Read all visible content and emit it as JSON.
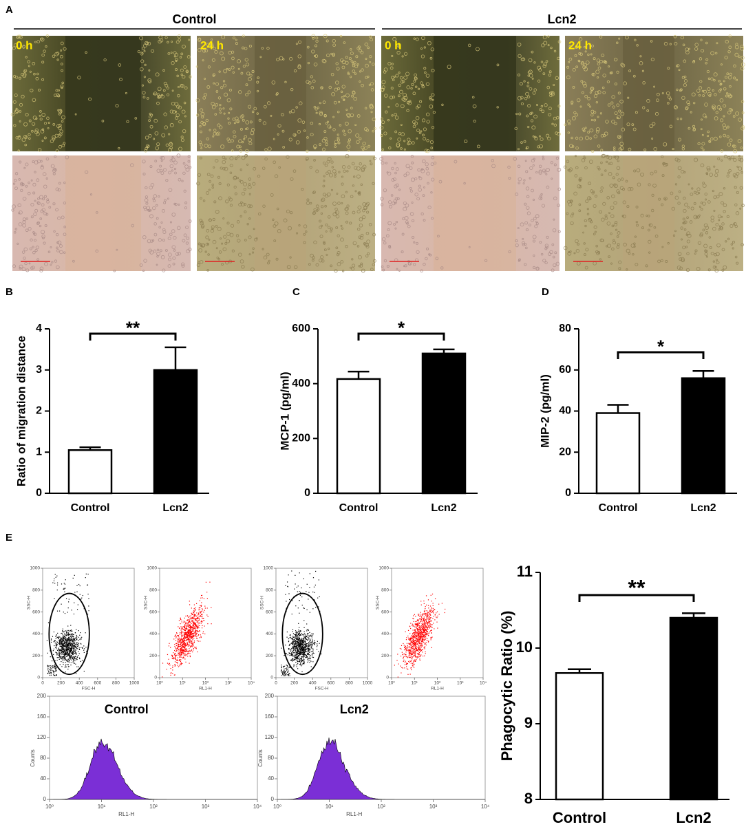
{
  "panel_labels": [
    "A",
    "B",
    "C",
    "D",
    "E"
  ],
  "micrographs": {
    "group_labels": [
      "Control",
      "Lcn2"
    ],
    "time_labels": [
      "0 h",
      "24 h",
      "0 h",
      "24 h"
    ]
  },
  "chart_data": [
    {
      "type": "bar",
      "ylabel": "Ratio of migration distance",
      "categories": [
        "Control",
        "Lcn2"
      ],
      "values": [
        1.05,
        3.0
      ],
      "errors": [
        0.07,
        0.55
      ],
      "colors": [
        "#ffffff",
        "#000000"
      ],
      "ylim": [
        0,
        4
      ],
      "yticks": [
        0,
        1,
        2,
        3,
        4
      ],
      "significance": "**"
    },
    {
      "type": "bar",
      "ylabel": "MCP-1 (pg/ml)",
      "categories": [
        "Control",
        "Lcn2"
      ],
      "values": [
        417,
        510
      ],
      "errors": [
        27,
        15
      ],
      "colors": [
        "#ffffff",
        "#000000"
      ],
      "ylim": [
        0,
        600
      ],
      "yticks": [
        0,
        200,
        400,
        600
      ],
      "significance": "*"
    },
    {
      "type": "bar",
      "ylabel": "MIP-2 (pg/ml)",
      "categories": [
        "Control",
        "Lcn2"
      ],
      "values": [
        39,
        56
      ],
      "errors": [
        4,
        3.5
      ],
      "colors": [
        "#ffffff",
        "#000000"
      ],
      "ylim": [
        0,
        80
      ],
      "yticks": [
        0,
        20,
        40,
        60,
        80
      ],
      "significance": "*"
    },
    {
      "type": "bar",
      "ylabel": "Phagocytic Ratio (%)",
      "categories": [
        "Control",
        "Lcn2"
      ],
      "values": [
        9.67,
        10.4
      ],
      "errors": [
        0.05,
        0.06
      ],
      "colors": [
        "#ffffff",
        "#000000"
      ],
      "ylim": [
        8,
        11
      ],
      "yticks": [
        8,
        9,
        10,
        11
      ],
      "significance": "**"
    }
  ],
  "flow_cytometry": {
    "scatter_plots": [
      {
        "xlabel": "FSC-H",
        "ylabel": "SSC-H",
        "log_x": false,
        "color": "#000000",
        "gate": true,
        "xlim": [
          0,
          1000
        ],
        "ylim": [
          0,
          1000
        ],
        "xticks": [
          0,
          200,
          400,
          600,
          800,
          1000
        ],
        "yticks": [
          0,
          200,
          400,
          600,
          800,
          1000
        ]
      },
      {
        "xlabel": "RL1-H",
        "ylabel": "SSC-H",
        "log_x": true,
        "color": "#ff0000",
        "gate": false,
        "xlim": [
          1,
          10000
        ],
        "ylim": [
          0,
          1000
        ],
        "xticks": [
          {
            "value": 1,
            "label": "10⁰"
          },
          {
            "value": 10,
            "label": "10¹"
          },
          {
            "value": 100,
            "label": "10²"
          },
          {
            "value": 1000,
            "label": "10³"
          },
          {
            "value": 10000,
            "label": "10⁴"
          }
        ],
        "yticks": [
          0,
          200,
          400,
          600,
          800,
          1000
        ]
      },
      {
        "xlabel": "FSC-H",
        "ylabel": "SSC-H",
        "log_x": false,
        "color": "#000000",
        "gate": true,
        "xlim": [
          0,
          1000
        ],
        "ylim": [
          0,
          1000
        ],
        "xticks": [
          0,
          200,
          400,
          600,
          800,
          1000
        ],
        "yticks": [
          0,
          200,
          400,
          600,
          800,
          1000
        ]
      },
      {
        "xlabel": "RL1-H",
        "ylabel": "SSC-H",
        "log_x": true,
        "color": "#ff0000",
        "gate": false,
        "xlim": [
          1,
          10000
        ],
        "ylim": [
          0,
          1000
        ],
        "xticks": [
          {
            "value": 1,
            "label": "10⁰"
          },
          {
            "value": 10,
            "label": "10¹"
          },
          {
            "value": 100,
            "label": "10²"
          },
          {
            "value": 1000,
            "label": "10³"
          },
          {
            "value": 10000,
            "label": "10⁴"
          }
        ],
        "yticks": [
          0,
          200,
          400,
          600,
          800,
          1000
        ]
      }
    ],
    "histograms": [
      {
        "title": "Control",
        "xlabel": "RL1-H",
        "ylabel": "Counts",
        "color": "#7b2fd6",
        "xlim": [
          1,
          10000
        ],
        "ylim": [
          0,
          200
        ],
        "xticks": [
          {
            "value": 1,
            "label": "10⁰"
          },
          {
            "value": 10,
            "label": "10¹"
          },
          {
            "value": 100,
            "label": "10²"
          },
          {
            "value": 1000,
            "label": "10³"
          },
          {
            "value": 10000,
            "label": "10⁴"
          }
        ],
        "yticks": [
          0,
          40,
          80,
          120,
          160,
          200
        ]
      },
      {
        "title": "Lcn2",
        "xlabel": "RL1-H",
        "ylabel": "Counts",
        "color": "#7b2fd6",
        "xlim": [
          1,
          10000
        ],
        "ylim": [
          0,
          200
        ],
        "xticks": [
          {
            "value": 1,
            "label": "10⁰"
          },
          {
            "value": 10,
            "label": "10¹"
          },
          {
            "value": 100,
            "label": "10²"
          },
          {
            "value": 1000,
            "label": "10³"
          },
          {
            "value": 10000,
            "label": "10⁴"
          }
        ],
        "yticks": [
          0,
          40,
          80,
          120,
          160,
          200
        ]
      }
    ]
  }
}
